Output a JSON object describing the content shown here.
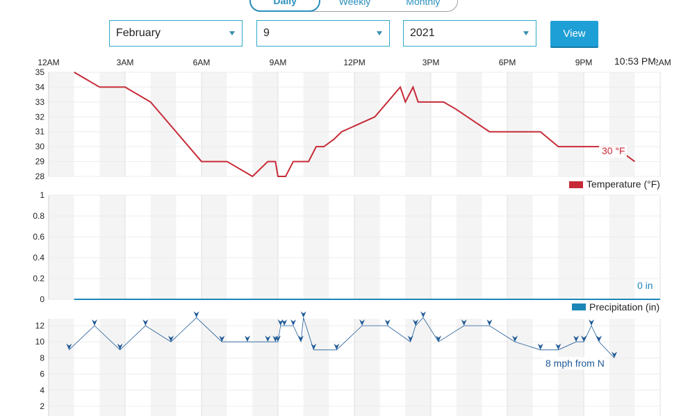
{
  "tabs": [
    {
      "label": "Daily",
      "active": true
    },
    {
      "label": "Weekly",
      "active": false
    },
    {
      "label": "Monthly",
      "active": false
    }
  ],
  "filters": {
    "month": "February",
    "day": "9",
    "year": "2021",
    "view_label": "View"
  },
  "time_axis": {
    "labels": [
      "12AM",
      "3AM",
      "6AM",
      "9AM",
      "12PM",
      "3PM",
      "6PM",
      "9PM",
      "12AM"
    ],
    "current_time": "10:53 PM"
  },
  "colors": {
    "temperature": "#c62a36",
    "precipitation": "#1a86b5",
    "wind": "#1f5a96",
    "accent": "#1e9fd6"
  },
  "chart_data": [
    {
      "type": "line",
      "x_unit": "hour of day",
      "ylim": [
        28,
        35
      ],
      "yticks": [
        28,
        29,
        30,
        31,
        32,
        33,
        34,
        35
      ],
      "legend": "Temperature (°F)",
      "annotation": "30 °F",
      "x": [
        1.0,
        2.0,
        3.0,
        4.0,
        5.0,
        6.0,
        7.0,
        8.0,
        8.6,
        8.9,
        9.0,
        9.3,
        9.6,
        10.2,
        10.5,
        10.8,
        11.2,
        11.5,
        12.8,
        13.8,
        14.0,
        14.3,
        14.5,
        15.5,
        16.0,
        17.3,
        18.0,
        19.3,
        20.0,
        20.3,
        20.7,
        21.0,
        21.5,
        22.1,
        22.2,
        23.0
      ],
      "y": [
        35,
        34,
        34,
        33,
        31,
        29,
        29,
        28,
        29,
        29,
        28,
        28,
        29,
        29,
        30,
        30,
        30.5,
        31,
        32,
        34,
        33,
        34,
        33,
        33,
        32.5,
        31,
        31,
        31,
        30,
        30,
        30,
        30,
        30,
        30,
        30,
        29
      ]
    },
    {
      "type": "area",
      "ylim": [
        0,
        1
      ],
      "yticks": [
        "0",
        "0.2",
        "0.4",
        "0.6",
        "0.8",
        "1"
      ],
      "legend": "Precipitation (in)",
      "annotation": "0 in",
      "x": [
        1,
        24
      ],
      "y": [
        0,
        0
      ]
    },
    {
      "type": "scatter",
      "ylim": [
        0,
        13
      ],
      "yticks": [
        2,
        4,
        6,
        8,
        10,
        12
      ],
      "annotation": "8 mph from N",
      "x": [
        0.8,
        1.8,
        2.8,
        3.8,
        4.8,
        5.8,
        6.8,
        7.8,
        8.6,
        8.9,
        9.0,
        9.1,
        9.25,
        9.6,
        9.9,
        10.0,
        10.4,
        11.3,
        12.3,
        13.3,
        14.2,
        14.4,
        14.7,
        15.3,
        16.3,
        17.3,
        18.3,
        19.3,
        20.0,
        20.7,
        21.0,
        21.3,
        21.6,
        22.2
      ],
      "y": [
        9,
        12,
        9,
        12,
        10,
        13,
        10,
        10,
        10,
        10,
        10,
        12,
        12,
        12,
        10,
        13,
        9,
        9,
        12,
        12,
        10,
        12,
        13,
        10,
        12,
        12,
        10,
        9,
        9,
        10,
        10,
        12,
        10,
        8
      ]
    }
  ]
}
